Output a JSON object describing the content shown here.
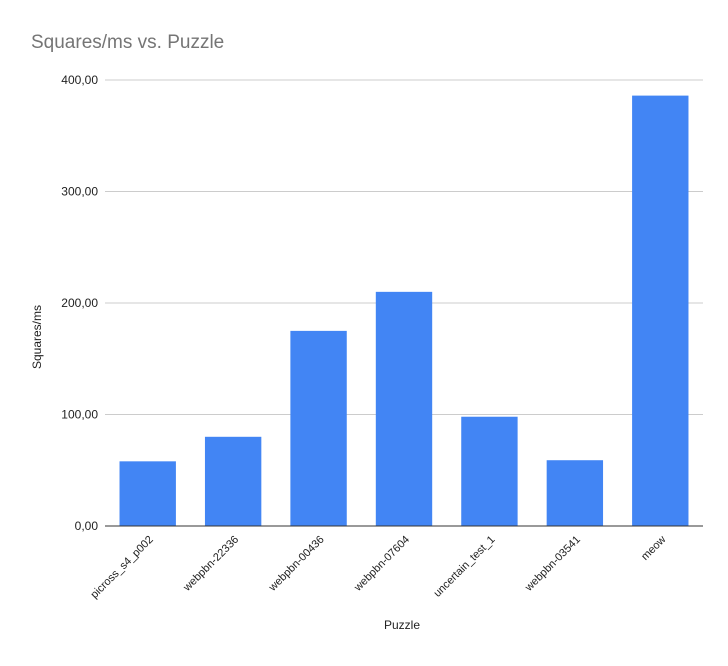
{
  "chart_data": {
    "type": "bar",
    "title": "Squares/ms vs. Puzzle",
    "xlabel": "Puzzle",
    "ylabel": "Squares/ms",
    "categories": [
      "picross_s4_p002",
      "webpbn-22336",
      "webpbn-00436",
      "webpbn-07604",
      "uncertain_test_1",
      "webpbn-03541",
      "meow"
    ],
    "values": [
      58,
      80,
      175,
      210,
      98,
      59,
      386
    ],
    "ylim": [
      0,
      400
    ],
    "yticks": [
      0,
      100,
      200,
      300,
      400
    ],
    "ytick_labels": [
      "0,00",
      "100,00",
      "200,00",
      "300,00",
      "400,00"
    ],
    "grid": true,
    "legend": "none",
    "colors": {
      "bar": "#4285f4",
      "grid": "#cccccc",
      "axis": "#333333",
      "title": "#757575",
      "text": "#222222"
    }
  }
}
